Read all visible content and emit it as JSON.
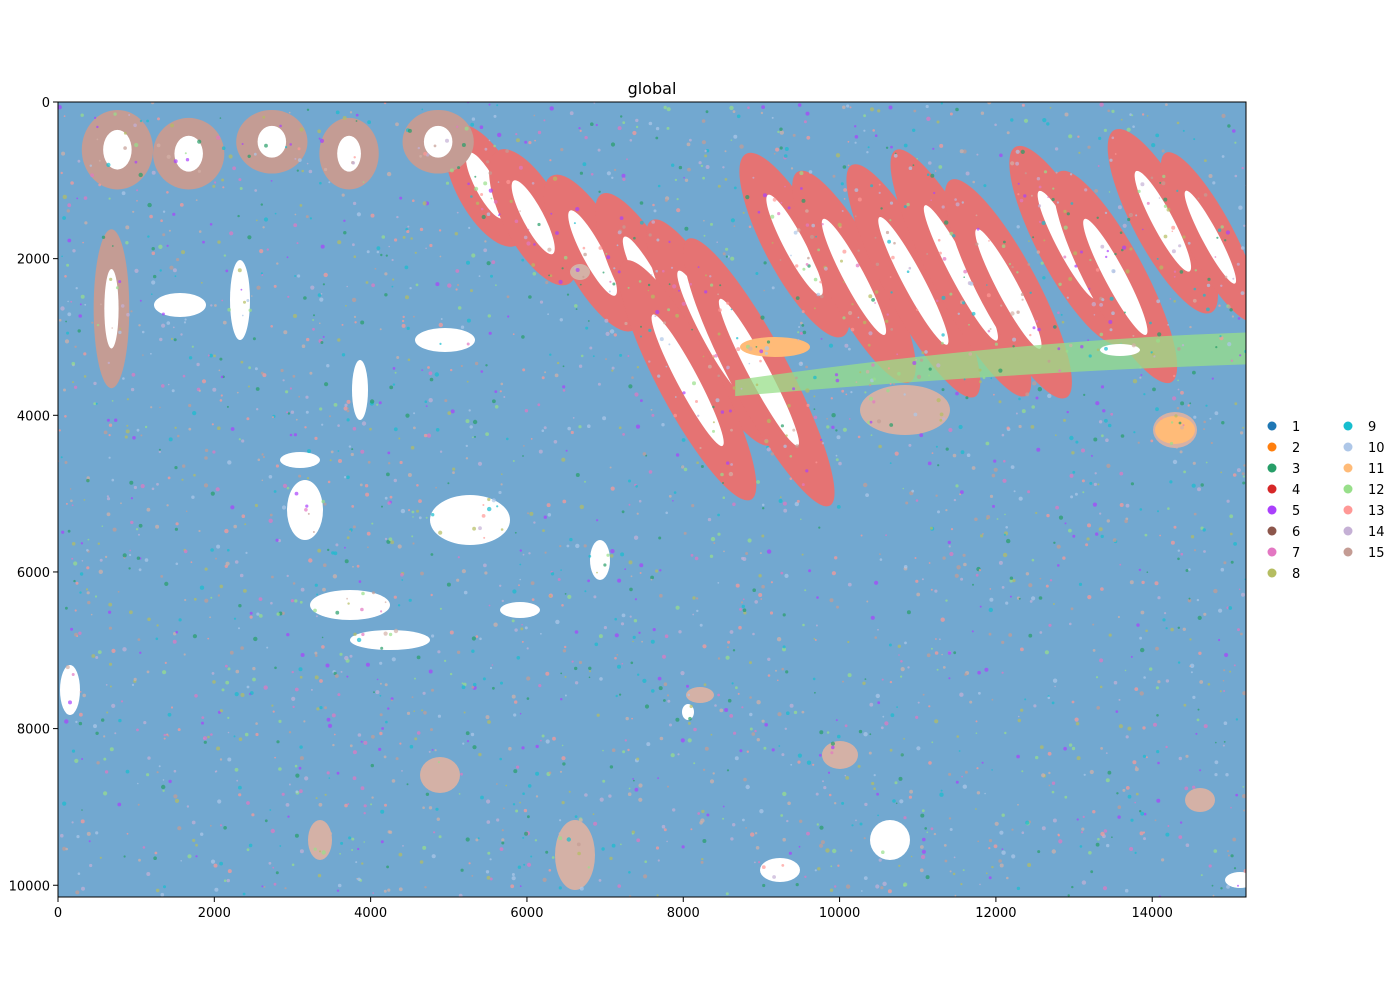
{
  "chart_data": {
    "type": "scatter",
    "title": "global",
    "xlabel": "",
    "ylabel": "",
    "xlim": [
      0,
      15200
    ],
    "ylim": [
      10150,
      0
    ],
    "xticks": [
      0,
      2000,
      4000,
      6000,
      8000,
      10000,
      12000,
      14000
    ],
    "yticks": [
      0,
      2000,
      4000,
      6000,
      8000,
      10000
    ],
    "grid": false,
    "legend_position": "right",
    "legend": [
      {
        "label": "1",
        "color": "#1f77b4"
      },
      {
        "label": "2",
        "color": "#ff7f0e"
      },
      {
        "label": "3",
        "color": "#279e68"
      },
      {
        "label": "4",
        "color": "#d62728"
      },
      {
        "label": "5",
        "color": "#aa40fc"
      },
      {
        "label": "6",
        "color": "#8c564b"
      },
      {
        "label": "7",
        "color": "#e377c2"
      },
      {
        "label": "8",
        "color": "#b5bd61"
      },
      {
        "label": "9",
        "color": "#17becf"
      },
      {
        "label": "10",
        "color": "#aec7e8"
      },
      {
        "label": "11",
        "color": "#ffbb78"
      },
      {
        "label": "12",
        "color": "#98df8a"
      },
      {
        "label": "13",
        "color": "#ff9896"
      },
      {
        "label": "14",
        "color": "#c5b0d5"
      },
      {
        "label": "15",
        "color": "#c49c94"
      }
    ],
    "background_color": "#72a8d0",
    "epithelium_color": "#e57373"
  }
}
